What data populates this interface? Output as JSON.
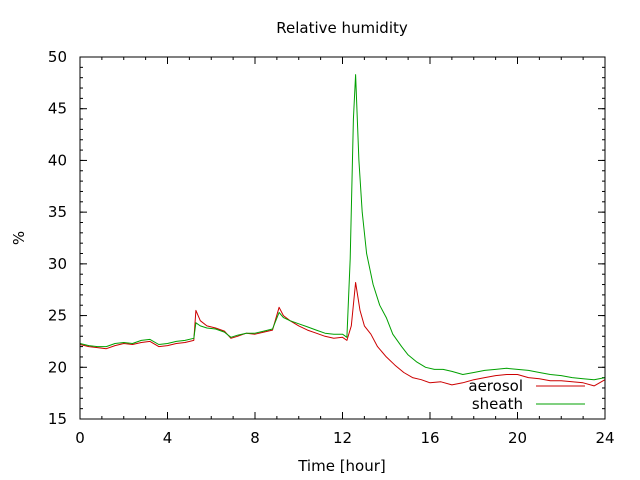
{
  "chart_data": {
    "type": "line",
    "title": "Relative humidity",
    "xlabel": "Time [hour]",
    "ylabel": "%",
    "xlim": [
      0,
      24
    ],
    "ylim": [
      15,
      50
    ],
    "xticks": [
      0,
      4,
      8,
      12,
      16,
      20,
      24
    ],
    "yticks": [
      15,
      20,
      25,
      30,
      35,
      40,
      45,
      50
    ],
    "x_minor_step": 1,
    "y_minor_step": 1,
    "grid": false,
    "legend_position": "bottom-right",
    "series": [
      {
        "name": "aerosol",
        "color": "#cc0000",
        "x": [
          0,
          0.4,
          0.8,
          1.2,
          1.6,
          2.0,
          2.4,
          2.8,
          3.2,
          3.6,
          4.0,
          4.4,
          4.8,
          5.2,
          5.3,
          5.5,
          5.8,
          6.2,
          6.6,
          6.9,
          7.2,
          7.6,
          8.0,
          8.4,
          8.8,
          9.1,
          9.3,
          9.6,
          10.0,
          10.4,
          10.8,
          11.2,
          11.6,
          12.0,
          12.2,
          12.4,
          12.6,
          12.8,
          13.0,
          13.3,
          13.6,
          14.0,
          14.4,
          14.8,
          15.2,
          15.6,
          16.0,
          16.5,
          17.0,
          17.5,
          18.0,
          18.5,
          19.0,
          19.5,
          20.0,
          20.5,
          21.0,
          21.5,
          22.0,
          22.5,
          23.0,
          23.5,
          24.0
        ],
        "values": [
          22.2,
          22.0,
          21.9,
          21.8,
          22.1,
          22.3,
          22.2,
          22.4,
          22.5,
          22.0,
          22.1,
          22.3,
          22.4,
          22.6,
          25.5,
          24.5,
          24.0,
          23.8,
          23.5,
          22.8,
          23.0,
          23.3,
          23.2,
          23.4,
          23.6,
          25.8,
          25.0,
          24.5,
          24.0,
          23.6,
          23.3,
          23.0,
          22.8,
          22.9,
          22.6,
          24.0,
          28.2,
          25.5,
          24.0,
          23.2,
          22.0,
          21.0,
          20.2,
          19.5,
          19.0,
          18.8,
          18.5,
          18.6,
          18.3,
          18.5,
          18.8,
          19.0,
          19.2,
          19.3,
          19.3,
          19.0,
          18.9,
          18.7,
          18.7,
          18.6,
          18.5,
          18.2,
          18.8
        ]
      },
      {
        "name": "sheath",
        "color": "#00a000",
        "x": [
          0,
          0.4,
          0.8,
          1.2,
          1.6,
          2.0,
          2.4,
          2.8,
          3.2,
          3.6,
          4.0,
          4.4,
          4.8,
          5.2,
          5.3,
          5.5,
          5.8,
          6.2,
          6.6,
          6.9,
          7.2,
          7.6,
          8.0,
          8.4,
          8.8,
          9.1,
          9.3,
          9.6,
          10.0,
          10.4,
          10.8,
          11.2,
          11.6,
          12.0,
          12.2,
          12.35,
          12.5,
          12.6,
          12.75,
          12.9,
          13.1,
          13.4,
          13.7,
          14.0,
          14.3,
          14.7,
          15.0,
          15.4,
          15.8,
          16.2,
          16.6,
          17.0,
          17.5,
          18.0,
          18.5,
          19.0,
          19.5,
          20.0,
          20.5,
          21.0,
          21.5,
          22.0,
          22.5,
          23.0,
          23.5,
          24.0
        ],
        "values": [
          22.3,
          22.1,
          22.0,
          22.0,
          22.3,
          22.4,
          22.3,
          22.6,
          22.7,
          22.2,
          22.3,
          22.5,
          22.6,
          22.8,
          24.3,
          24.0,
          23.8,
          23.7,
          23.4,
          22.9,
          23.1,
          23.3,
          23.3,
          23.5,
          23.7,
          25.3,
          24.8,
          24.5,
          24.2,
          23.9,
          23.6,
          23.3,
          23.2,
          23.2,
          22.9,
          30.5,
          44.0,
          48.3,
          40.0,
          35.0,
          31.0,
          28.0,
          26.0,
          24.8,
          23.2,
          22.0,
          21.2,
          20.5,
          20.0,
          19.8,
          19.8,
          19.6,
          19.3,
          19.5,
          19.7,
          19.8,
          19.9,
          19.8,
          19.7,
          19.5,
          19.3,
          19.2,
          19.0,
          18.9,
          18.8,
          19.0
        ]
      }
    ]
  }
}
